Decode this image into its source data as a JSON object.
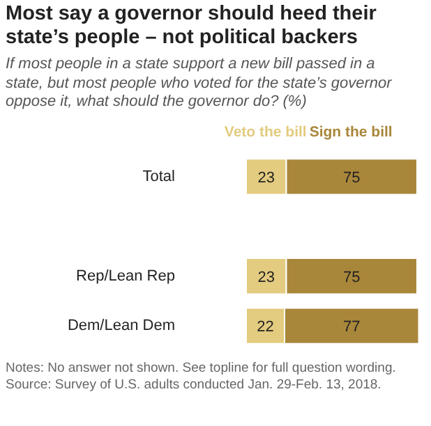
{
  "chart_data": {
    "type": "bar",
    "orientation": "horizontal",
    "stacked": true,
    "title": "Most say a governor should heed their state’s people – not political backers",
    "subtitle": "If most people in a state support a new bill passed in a state, but most people who voted for the state’s governor oppose it, what should the governor do? (%)",
    "categories": [
      "Total",
      null,
      "Rep/Lean Rep",
      "Dem/Lean Dem"
    ],
    "series": [
      {
        "name": "Veto the bill",
        "color": "#e3cb7f",
        "values": [
          23,
          null,
          23,
          22
        ]
      },
      {
        "name": "Sign the bill",
        "color": "#a9873a",
        "values": [
          75,
          null,
          75,
          77
        ]
      }
    ],
    "xlim": [
      0,
      100
    ],
    "tick_labels": "y",
    "grid": false,
    "data_labels": true,
    "annotations": [
      "Notes: No answer not shown. See topline for full question wording.",
      "Source: Survey of U.S. adults conducted Jan. 29-Feb. 13, 2018."
    ]
  }
}
